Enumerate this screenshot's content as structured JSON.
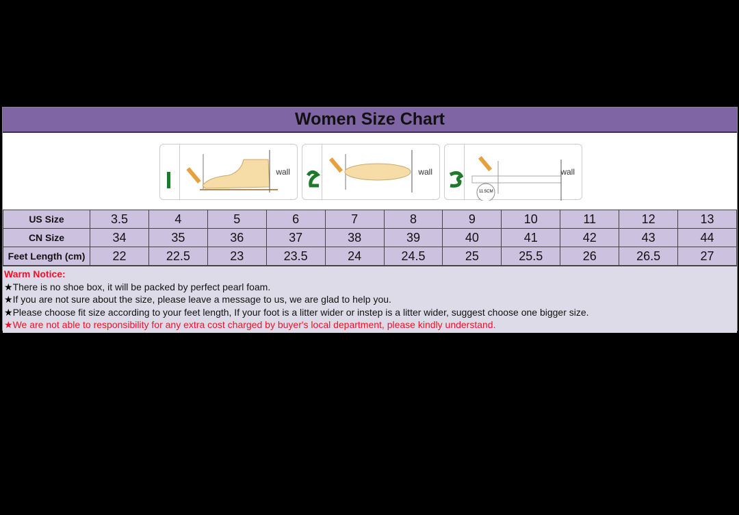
{
  "title": "Women Size Chart",
  "steps": [
    {
      "number": "1",
      "wall": "wall"
    },
    {
      "number": "2",
      "wall": "wall"
    },
    {
      "number": "3",
      "wall": "wall",
      "ruler_label": "11.5CM"
    }
  ],
  "table": {
    "rows": [
      {
        "label": "US Size",
        "values": [
          "3.5",
          "4",
          "5",
          "6",
          "7",
          "8",
          "9",
          "10",
          "11",
          "12",
          "13"
        ]
      },
      {
        "label": "CN Size",
        "values": [
          "34",
          "35",
          "36",
          "37",
          "38",
          "39",
          "40",
          "41",
          "42",
          "43",
          "44"
        ]
      },
      {
        "label": "Feet Length (cm)",
        "values": [
          "22",
          "22.5",
          "23",
          "23.5",
          "24",
          "24.5",
          "25",
          "25.5",
          "26",
          "26.5",
          "27"
        ]
      }
    ]
  },
  "notice": {
    "heading": "Warm Notice:",
    "items": [
      {
        "text": "There is no shoe box, it will be packed by perfect pearl foam.",
        "color": "#111111"
      },
      {
        "text": "If you are not sure about the size, please leave a message to us, we are glad to help you.",
        "color": "#111111"
      },
      {
        "text": "Please choose fit size according to your feet length, If your foot is a litter wider or instep is a litter wider, suggest choose one bigger size.",
        "color": "#111111"
      },
      {
        "text": "We are not able to responsibility for any extra cost charged by buyer's local department, please kindly understand.",
        "color": "#f0102a"
      }
    ]
  },
  "colors": {
    "header": "#8065a4",
    "cell": "#cdc1e0",
    "notice_bg": "#dddbe8",
    "warning": "#f0102a"
  }
}
